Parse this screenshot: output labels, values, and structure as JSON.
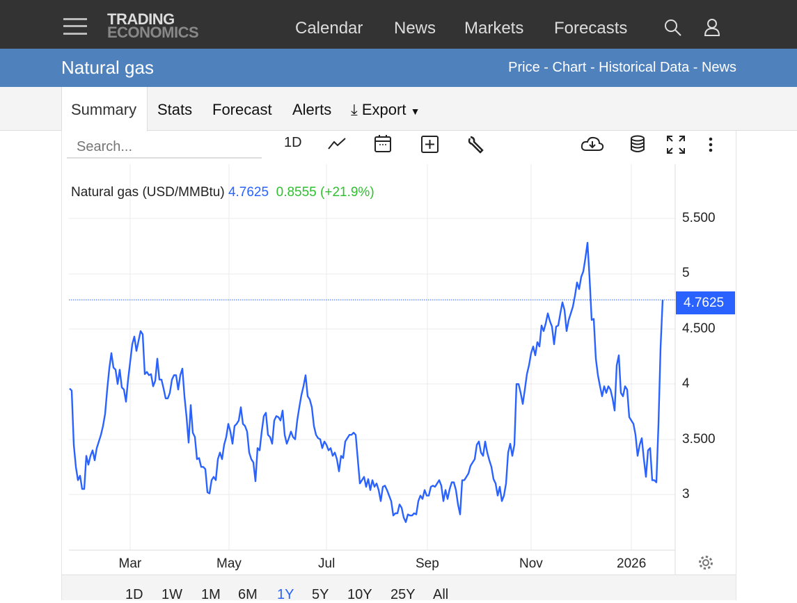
{
  "header": {
    "logo_line1": "TRADING",
    "logo_line2": "ECONOMICS",
    "nav": [
      "Calendar",
      "News",
      "Markets",
      "Forecasts"
    ]
  },
  "titlebar": {
    "title": "Natural gas",
    "links": "Price - Chart - Historical Data - News"
  },
  "tabs": [
    "Summary",
    "Stats",
    "Forecast",
    "Alerts",
    "Export"
  ],
  "toolbar": {
    "search_placeholder": "Search...",
    "interval": "1D"
  },
  "legend": {
    "name": "Natural gas (USD/MMBtu)",
    "value": "4.7625",
    "change": "0.8555 (+21.9%)"
  },
  "ranges": [
    "1D",
    "1W",
    "1M",
    "6M",
    "1Y",
    "5Y",
    "10Y",
    "25Y",
    "All"
  ],
  "active_range": "1Y",
  "colors": {
    "line": "#2962ff",
    "change": "#2fc02f",
    "titlebar": "#4f81bd"
  },
  "chart_data": {
    "type": "line",
    "title": "Natural gas (USD/MMBtu)",
    "ylim": [
      2.5,
      6.0
    ],
    "yticks": [
      "5.500",
      "5",
      "4.500",
      "4",
      "3.500",
      "3"
    ],
    "ytick_values": [
      5.5,
      5,
      4.5,
      4,
      3.5,
      3
    ],
    "xticks": [
      "Mar",
      "May",
      "Jul",
      "Sep",
      "Nov",
      "2026"
    ],
    "last_value": "4.7625",
    "values": [
      3.96,
      3.94,
      3.45,
      3.25,
      3.13,
      3.17,
      3.05,
      3.05,
      3.35,
      3.27,
      3.35,
      3.4,
      3.31,
      3.42,
      3.48,
      3.54,
      3.62,
      3.73,
      3.95,
      4.14,
      4.28,
      4.15,
      4.13,
      4.0,
      4.13,
      3.97,
      3.95,
      3.84,
      4.04,
      4.2,
      4.36,
      4.43,
      4.3,
      4.39,
      4.48,
      4.45,
      4.09,
      4.11,
      4.08,
      4.09,
      3.98,
      4.03,
      4.23,
      4.04,
      4.04,
      3.96,
      3.87,
      3.87,
      3.92,
      4.04,
      4.08,
      4.08,
      3.95,
      4.08,
      4.14,
      3.89,
      3.7,
      3.47,
      3.81,
      3.56,
      3.52,
      3.32,
      3.33,
      3.25,
      3.25,
      3.23,
      3.02,
      3.01,
      3.13,
      3.16,
      3.13,
      3.32,
      3.38,
      3.32,
      3.45,
      3.52,
      3.64,
      3.57,
      3.46,
      3.62,
      3.64,
      3.67,
      3.79,
      3.64,
      3.62,
      3.57,
      3.38,
      3.32,
      3.29,
      3.12,
      3.42,
      3.4,
      3.57,
      3.71,
      3.74,
      3.54,
      3.52,
      3.46,
      3.67,
      3.71,
      3.7,
      3.67,
      3.76,
      3.54,
      3.46,
      3.51,
      3.57,
      3.52,
      3.5,
      3.67,
      3.79,
      3.9,
      3.98,
      4.08,
      3.89,
      3.86,
      3.79,
      3.62,
      3.54,
      3.51,
      3.5,
      3.42,
      3.48,
      3.45,
      3.4,
      3.42,
      3.35,
      3.38,
      3.32,
      3.21,
      3.35,
      3.33,
      3.48,
      3.51,
      3.54,
      3.54,
      3.56,
      3.54,
      3.32,
      3.1,
      3.13,
      3.16,
      3.07,
      3.14,
      3.04,
      3.13,
      3.07,
      3.1,
      3.04,
      2.94,
      3.07,
      3.08,
      3.04,
      2.99,
      2.94,
      2.81,
      2.83,
      2.83,
      2.91,
      2.88,
      2.79,
      2.75,
      2.82,
      2.81,
      2.81,
      2.83,
      2.82,
      2.94,
      2.99,
      2.96,
      3.04,
      2.99,
      2.99,
      3.07,
      3.08,
      3.07,
      3.1,
      3.13,
      3.08,
      2.94,
      3.04,
      2.96,
      3.05,
      3.11,
      3.11,
      3.04,
      2.91,
      2.82,
      3.13,
      3.13,
      3.16,
      3.19,
      3.26,
      3.29,
      3.32,
      3.45,
      3.48,
      3.38,
      3.35,
      3.48,
      3.38,
      3.31,
      3.25,
      3.14,
      3.1,
      2.99,
      3.07,
      2.94,
      2.99,
      3.1,
      3.38,
      3.46,
      3.35,
      3.45,
      4.0,
      4.0,
      3.92,
      3.82,
      3.95,
      4.09,
      4.17,
      4.28,
      4.34,
      4.26,
      4.38,
      4.34,
      4.53,
      4.48,
      4.55,
      4.64,
      4.57,
      4.52,
      4.36,
      4.52,
      4.53,
      4.64,
      4.74,
      4.67,
      4.48,
      4.58,
      4.64,
      4.7,
      4.8,
      4.92,
      4.86,
      4.97,
      5.02,
      5.14,
      5.28,
      4.96,
      4.58,
      4.59,
      4.23,
      4.08,
      3.98,
      3.89,
      3.98,
      3.92,
      3.98,
      3.95,
      3.87,
      3.76,
      4.17,
      4.26,
      3.92,
      3.89,
      3.98,
      3.95,
      3.7,
      3.67,
      3.64,
      3.54,
      3.35,
      3.45,
      3.51,
      3.32,
      3.16,
      3.4,
      3.42,
      3.13,
      3.13,
      3.11,
      3.64,
      4.33,
      4.7625
    ]
  }
}
